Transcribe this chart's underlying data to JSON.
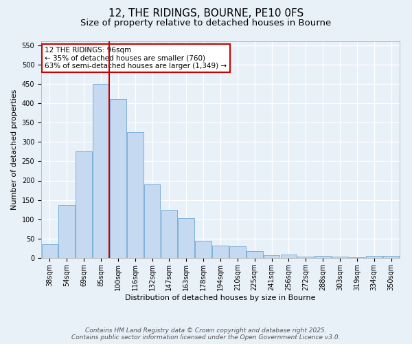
{
  "title_line1": "12, THE RIDINGS, BOURNE, PE10 0FS",
  "title_line2": "Size of property relative to detached houses in Bourne",
  "xlabel": "Distribution of detached houses by size in Bourne",
  "ylabel": "Number of detached properties",
  "categories": [
    "38sqm",
    "54sqm",
    "69sqm",
    "85sqm",
    "100sqm",
    "116sqm",
    "132sqm",
    "147sqm",
    "163sqm",
    "178sqm",
    "194sqm",
    "210sqm",
    "225sqm",
    "241sqm",
    "256sqm",
    "272sqm",
    "288sqm",
    "303sqm",
    "319sqm",
    "334sqm",
    "350sqm"
  ],
  "values": [
    35,
    137,
    275,
    450,
    410,
    325,
    190,
    125,
    103,
    45,
    32,
    30,
    18,
    8,
    9,
    3,
    5,
    3,
    2,
    5,
    5
  ],
  "bar_color": "#c5d9f0",
  "bar_edge_color": "#7eb0d8",
  "background_color": "#e8f0f8",
  "grid_color": "#ffffff",
  "red_line_color": "#cc0000",
  "red_line_x": 3.5,
  "annotation_text": "12 THE RIDINGS: 96sqm\n← 35% of detached houses are smaller (760)\n63% of semi-detached houses are larger (1,349) →",
  "annotation_box_color": "#ffffff",
  "annotation_box_edge": "#cc0000",
  "ylim": [
    0,
    560
  ],
  "yticks": [
    0,
    50,
    100,
    150,
    200,
    250,
    300,
    350,
    400,
    450,
    500,
    550
  ],
  "footer_line1": "Contains HM Land Registry data © Crown copyright and database right 2025.",
  "footer_line2": "Contains public sector information licensed under the Open Government Licence v3.0.",
  "title_fontsize": 11,
  "subtitle_fontsize": 9.5,
  "axis_label_fontsize": 8,
  "tick_fontsize": 7,
  "annotation_fontsize": 7.5,
  "footer_fontsize": 6.5
}
